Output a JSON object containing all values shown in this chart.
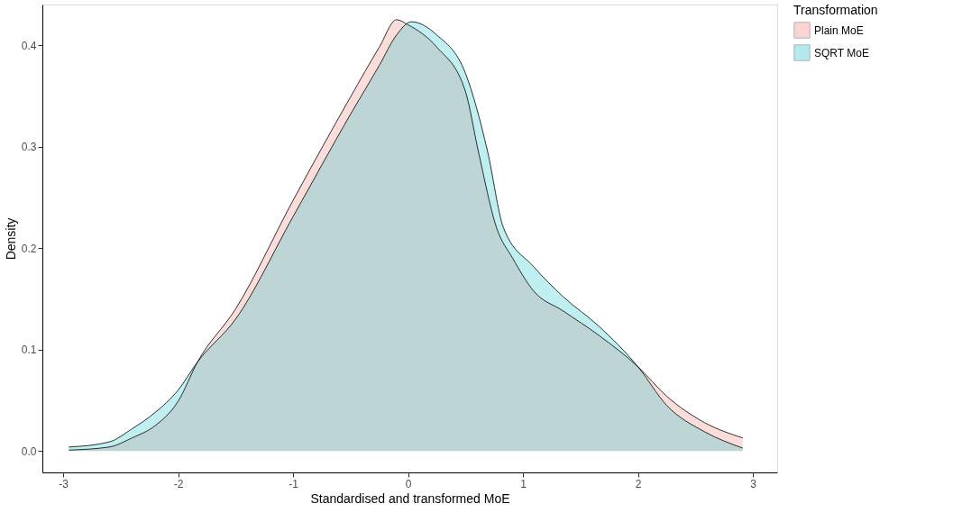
{
  "chart_data": {
    "type": "area",
    "xlabel": "Standardised and transformed MoE",
    "ylabel": "Density",
    "legend_title": "Transformation",
    "legend": "right",
    "grid": false,
    "xlim": [
      -3.18,
      3.21
    ],
    "xticks": [
      -3,
      -2,
      -1,
      0,
      1,
      2,
      3
    ],
    "ylim": [
      -0.021,
      0.44
    ],
    "yticks": [
      {
        "value": 0,
        "label": "0.0"
      },
      0.1,
      0.2,
      0.3,
      0.4
    ],
    "series": [
      {
        "name": "Plain MoE",
        "color": "#f8766d",
        "x": [
          -2.95,
          -2.6,
          -2.4,
          -2.2,
          -2.0,
          -1.83,
          -1.5,
          -1.0,
          -0.5,
          -0.25,
          -0.1,
          0.0,
          0.25,
          0.5,
          0.61,
          0.77,
          0.91,
          1.09,
          1.35,
          1.66,
          2.0,
          2.25,
          2.58,
          2.91
        ],
        "values": [
          0.001,
          0.004,
          0.013,
          0.025,
          0.049,
          0.088,
          0.14,
          0.247,
          0.349,
          0.398,
          0.425,
          0.42,
          0.398,
          0.354,
          0.296,
          0.22,
          0.19,
          0.158,
          0.138,
          0.114,
          0.083,
          0.054,
          0.028,
          0.013
        ]
      },
      {
        "name": "SQRT MoE",
        "color": "#00bfc4",
        "x": [
          -2.95,
          -2.6,
          -2.4,
          -2.2,
          -2.0,
          -1.83,
          -1.5,
          -1.0,
          -0.5,
          -0.25,
          -0.1,
          0.03,
          0.25,
          0.5,
          0.69,
          0.83,
          1.09,
          1.35,
          1.66,
          2.0,
          2.25,
          2.58,
          2.91
        ],
        "values": [
          0.004,
          0.009,
          0.022,
          0.038,
          0.06,
          0.088,
          0.13,
          0.231,
          0.332,
          0.38,
          0.41,
          0.423,
          0.41,
          0.372,
          0.296,
          0.22,
          0.182,
          0.152,
          0.123,
          0.083,
          0.045,
          0.019,
          0.003
        ]
      }
    ]
  }
}
